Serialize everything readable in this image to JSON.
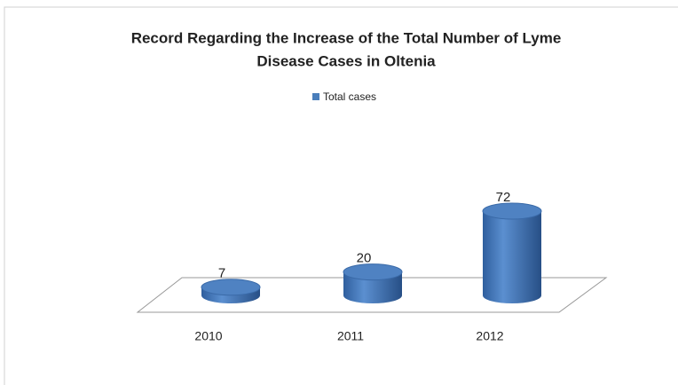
{
  "chart_data": {
    "type": "bar",
    "title": [
      "Record Regarding the Increase of the Total Number of Lyme",
      "Disease Cases in Oltenia"
    ],
    "categories": [
      "2010",
      "2011",
      "2012"
    ],
    "series": [
      {
        "name": "Total cases",
        "color": "#4a7ebb",
        "values": [
          7,
          20,
          72
        ]
      }
    ],
    "legend": "top"
  }
}
